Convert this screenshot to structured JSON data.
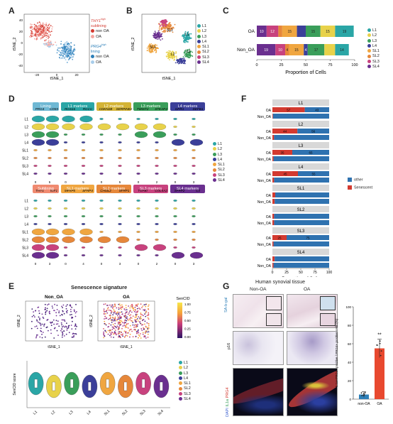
{
  "panel_labels": {
    "a": "A",
    "b": "B",
    "c": "C",
    "d": "D",
    "e": "E",
    "f": "F",
    "g": "G"
  },
  "colors": {
    "L1": "#2aa6a6",
    "L2": "#e8d24a",
    "L3": "#3a9e5a",
    "L4": "#3b3f99",
    "SL1": "#f0a640",
    "SL2": "#e6873a",
    "SL3": "#c8427e",
    "SL4": "#6a2f8f",
    "OA": "#e85a4f",
    "NonOA": "#2d7fb8",
    "Senescent": "#d33a30",
    "Other": "#2f72b0"
  },
  "panelA": {
    "xlabel": "tSNE_1",
    "ylabel": "tSNE_2",
    "legend": {
      "thy1_prefix": "THY1",
      "thy1_sup": "high",
      "thy1_sub": "sublining",
      "prg4_prefix": "PRG4",
      "prg4_sup": "high",
      "prg4_sub": "lining",
      "items": [
        "non OA",
        "OA",
        "non OA",
        "OA"
      ]
    },
    "xticks": [
      "-20",
      "0",
      "20"
    ],
    "yticks": [
      "40",
      "20",
      "0",
      "-20",
      "-40"
    ]
  },
  "panelB": {
    "xlabel": "tSNE_1",
    "ylabel": "tSNE_2",
    "cluster_labels": [
      "SL2",
      "L1",
      "SL1",
      "L2",
      "L3"
    ],
    "legend": [
      "L1",
      "L2",
      "L3",
      "L4",
      "SL1",
      "SL2",
      "SL3",
      "SL4"
    ],
    "xticks": [
      "-20",
      "0",
      "20"
    ],
    "yticks": [
      "40",
      "20",
      "0",
      "-20",
      "-40"
    ]
  },
  "panelC": {
    "xlabel": "Proportion of Cells",
    "xticks": [
      "0",
      "25",
      "50",
      "75",
      "100"
    ],
    "legend": [
      "L1",
      "L2",
      "L3",
      "L4",
      "SL1",
      "SL2",
      "SL3",
      "SL4"
    ]
  },
  "chart_data": [
    {
      "type": "bar",
      "title": "",
      "xlabel": "Proportion of Cells",
      "categories": [
        "OA",
        "Non_OA"
      ],
      "xlim": [
        0,
        100
      ],
      "series": [
        {
          "name": "SL4",
          "values": [
            10,
            19
          ]
        },
        {
          "name": "SL3",
          "values": [
            12,
            10
          ]
        },
        {
          "name": "SL2",
          "values": [
            4,
            4
          ]
        },
        {
          "name": "SL1",
          "values": [
            15,
            15
          ]
        },
        {
          "name": "L4",
          "values": [
            9,
            4
          ]
        },
        {
          "name": "L3",
          "values": [
            15,
            17
          ]
        },
        {
          "name": "L2",
          "values": [
            15,
            11
          ]
        },
        {
          "name": "L1",
          "values": [
            19,
            14
          ]
        }
      ],
      "label_text": {
        "OA": [
          "10",
          "12",
          "",
          "15",
          "",
          "15",
          "15",
          "19"
        ],
        "Non_OA": [
          "19",
          "10",
          "4",
          "15",
          "4",
          "17",
          "",
          "14"
        ]
      }
    },
    {
      "type": "bar",
      "title": "",
      "xlabel": "Proportion of Cells",
      "facets": [
        "L1",
        "L2",
        "L3",
        "L4",
        "SL1",
        "SL2",
        "SL3",
        "SL4"
      ],
      "categories": [
        "OA",
        "Non_OA"
      ],
      "xlim": [
        0,
        100
      ],
      "series_names": [
        "other",
        "Senescent"
      ],
      "senescent": {
        "L1": [
          57,
          1
        ],
        "L2": [
          44,
          3
        ],
        "L3": [
          35,
          2
        ],
        "L4": [
          45,
          3
        ],
        "SL1": [
          5,
          4
        ],
        "SL2": [
          3,
          3
        ],
        "SL3": [
          25,
          2
        ],
        "SL4": [
          4,
          2
        ]
      },
      "labels": {
        "L1": [
          "57",
          "43"
        ],
        "L2": [
          "44",
          "56"
        ],
        "L3": [
          "35",
          "65"
        ],
        "L4": [
          "45",
          "55"
        ],
        "SL1": [
          "",
          ""
        ],
        "SL2": [
          "",
          ""
        ],
        "SL3": [
          "25",
          "75"
        ],
        "SL4": [
          "",
          ""
        ]
      },
      "xticks": [
        "0",
        "25",
        "50",
        "75",
        "100"
      ]
    },
    {
      "type": "bar",
      "title": "",
      "ylabel": "IL1a+PRG4+ positive / PRG4+ positive cells (%)",
      "categories": [
        "non-OA",
        "OA"
      ],
      "values": [
        5,
        55
      ],
      "errors": [
        3,
        10
      ],
      "ylim": [
        0,
        100
      ],
      "yticks": [
        "0",
        "20",
        "40",
        "60",
        "80",
        "100"
      ],
      "annotation": "**"
    }
  ],
  "panelD": {
    "top_headers": [
      "Lining",
      "L1 markers",
      "L2 markers",
      "L3 markers",
      "L4 markers"
    ],
    "top_genes": [
      "PRG4",
      "CD55",
      "RGS16",
      "RGCC",
      "CDKN2B",
      "SERPINE2",
      "TWIST2",
      "STEAP4",
      "GPR1",
      "DEFB1"
    ],
    "bottom_headers": [
      "Sublining",
      "SL1 markers",
      "SL2 markers",
      "SL3 markers",
      "SL4 markers"
    ],
    "bottom_genes": [
      "THY1",
      "IGF1",
      "MFAP5",
      "SFRP4",
      "CHI3L2",
      "SFRP1",
      "TGFBI",
      "COL5A2",
      "SFRP2",
      "C3"
    ],
    "rows": [
      "L1",
      "L2",
      "L3",
      "L4",
      "SL1",
      "SL2",
      "SL3",
      "SL4"
    ],
    "legend": [
      "L1",
      "L2",
      "L3",
      "L4",
      "SL1",
      "SL2",
      "SL3",
      "SL4"
    ],
    "top_ticks": [
      "0",
      "5",
      "0",
      "5",
      "0",
      "5",
      "0",
      "2",
      "0",
      "3"
    ],
    "bottom_ticks": [
      "0",
      "3",
      "0",
      "4",
      "0",
      "3",
      "0",
      "2",
      "0",
      "3"
    ]
  },
  "panelE": {
    "title": "Senescence signature",
    "left_title": "Non_OA",
    "right_title": "OA",
    "xlabel": "tSNE_1",
    "ylabel": "tSNE_2",
    "colorbar_title": "SenCID",
    "colorbar_ticks": [
      "1.00",
      "0.75",
      "0.50",
      "0.25",
      "0.00"
    ],
    "violin_ylabel": "SenCID score",
    "violin_categories": [
      "L1",
      "L2",
      "L3",
      "L4",
      "SL1",
      "SL2",
      "SL3",
      "SL4"
    ],
    "legend": [
      "L1",
      "L2",
      "L3",
      "L4",
      "SL1",
      "SL2",
      "SL3",
      "SL4"
    ]
  },
  "panelF": {
    "legend": [
      "other",
      "Senescent"
    ]
  },
  "panelG": {
    "title": "Human synovial tissue",
    "col_left": "Non-OA",
    "col_right": "OA",
    "row1": "SA-b-gal",
    "row2": "p16",
    "row3_dapi": "DAPI",
    "row3_il1a": "IL1a",
    "row3_prg4": "PRG4",
    "bar_ylabel": "IL1a+PRG4+ positive / PRG4+ positive cells (%)"
  }
}
